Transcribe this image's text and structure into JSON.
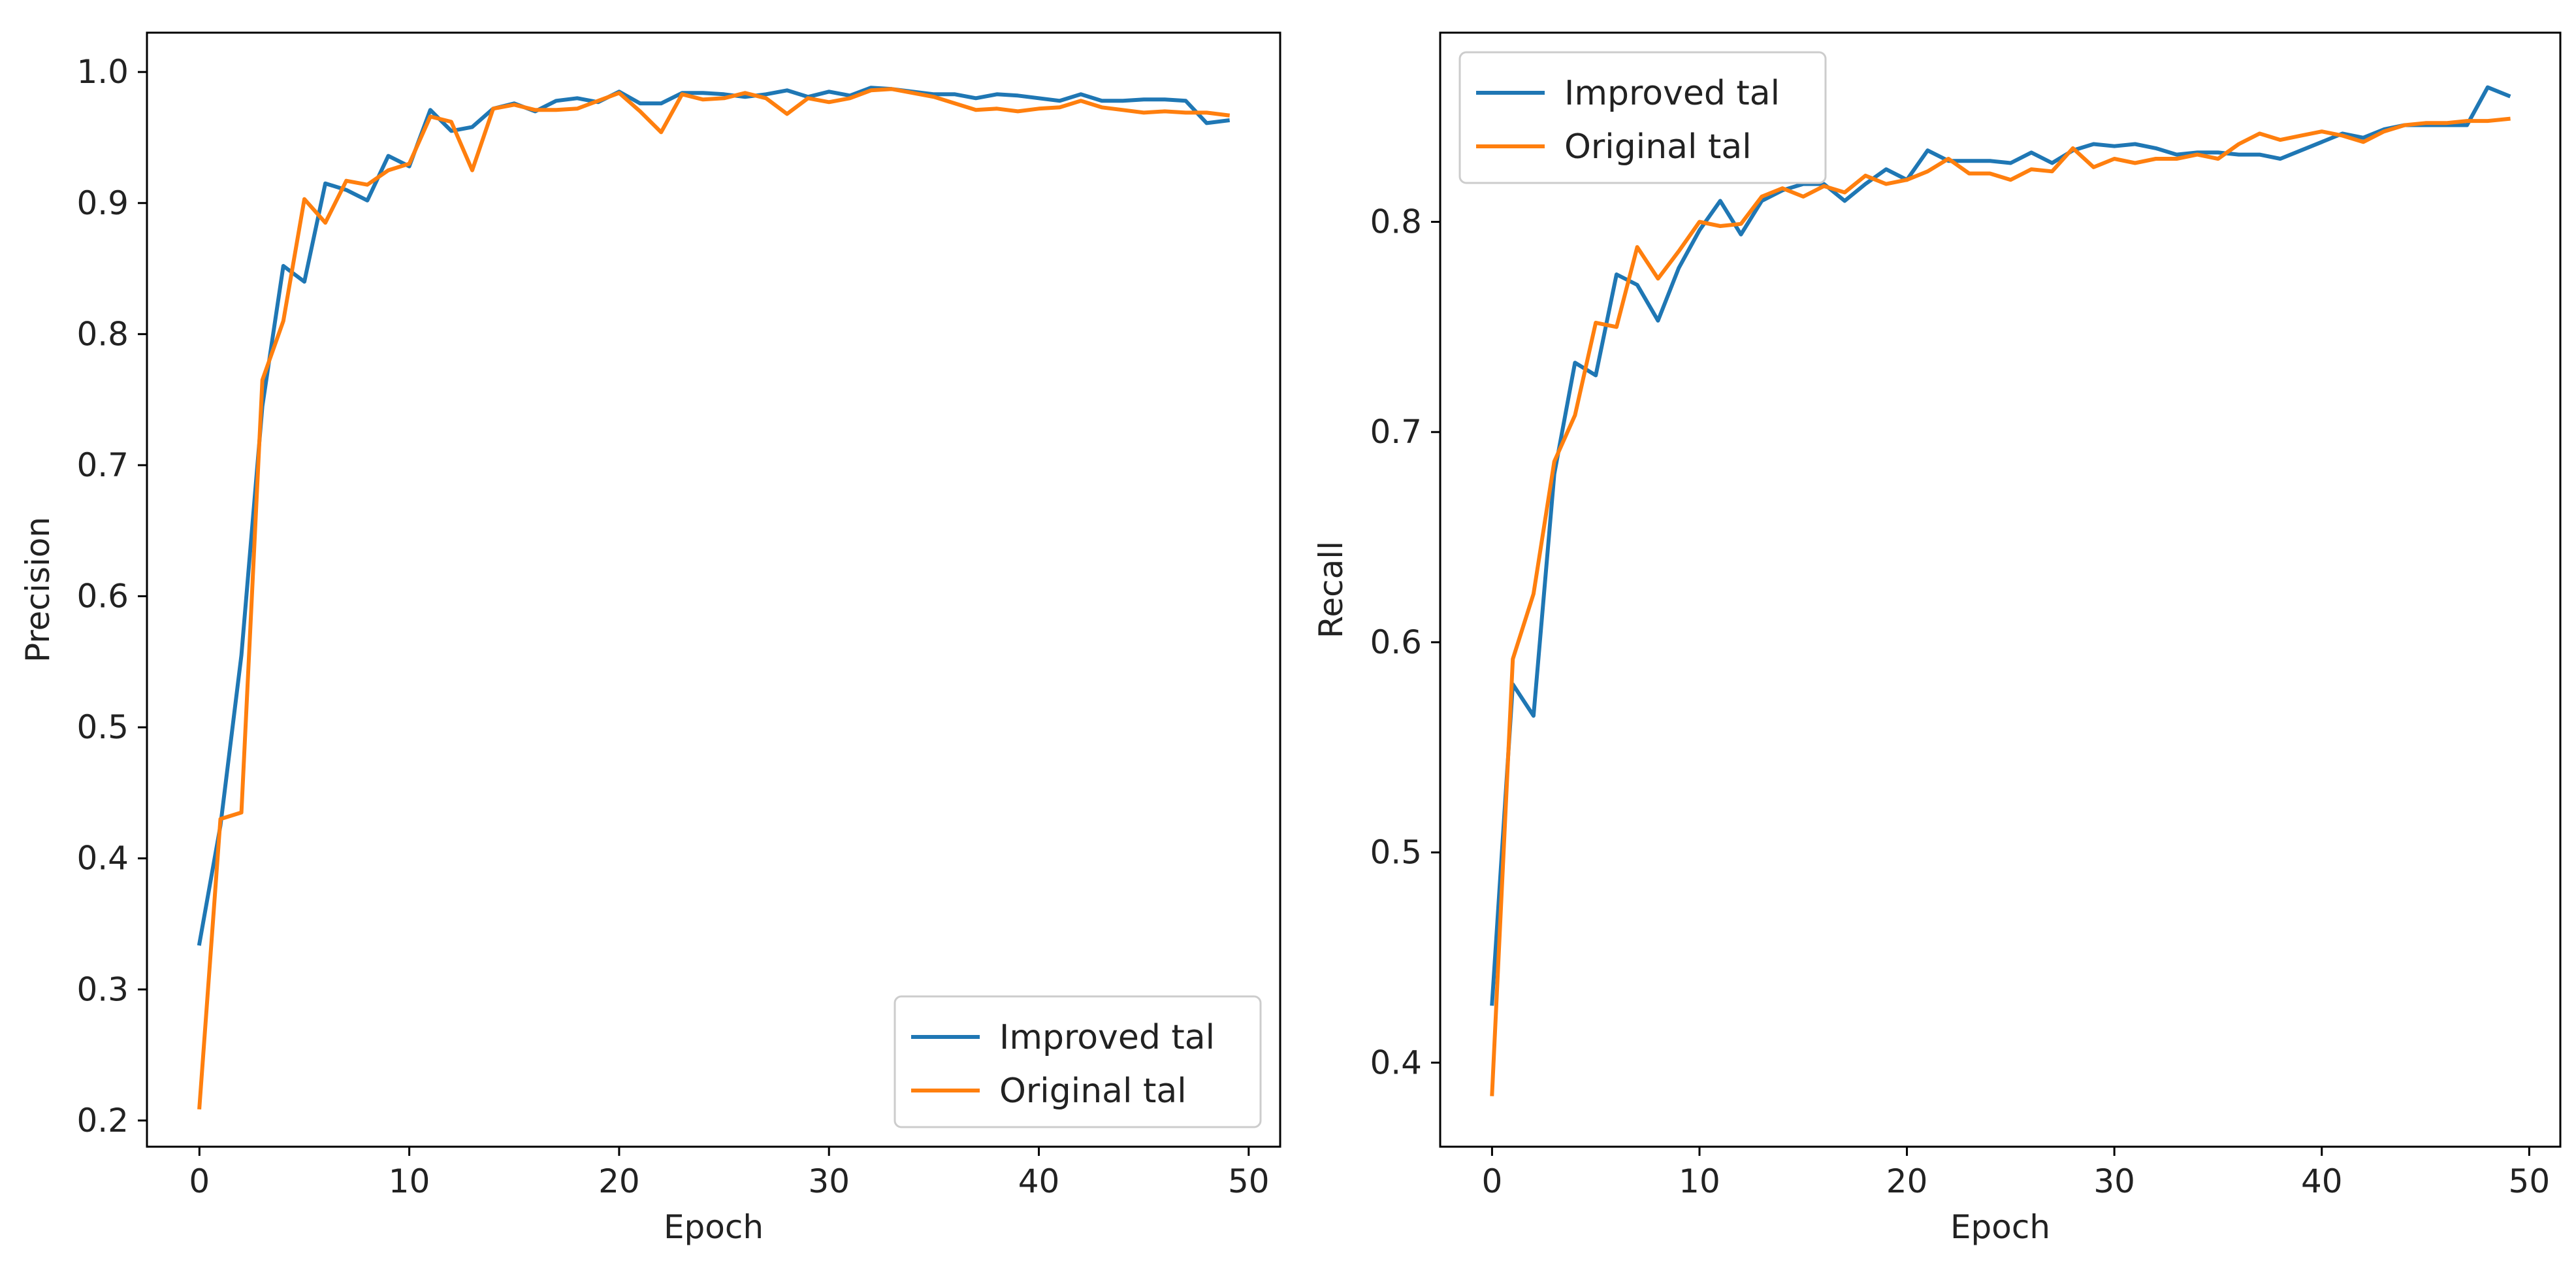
{
  "chart_data": [
    {
      "type": "line",
      "xlabel": "Epoch",
      "ylabel": "Precision",
      "xlim": [
        -2.5,
        51.5
      ],
      "ylim": [
        0.18,
        1.03
      ],
      "xticks": [
        0,
        10,
        20,
        30,
        40,
        50
      ],
      "xtick_labels": [
        "0",
        "10",
        "20",
        "30",
        "40",
        "50"
      ],
      "yticks": [
        0.2,
        0.3,
        0.4,
        0.5,
        0.6,
        0.7,
        0.8,
        0.9,
        1.0
      ],
      "ytick_labels": [
        "0.2",
        "0.3",
        "0.4",
        "0.5",
        "0.6",
        "0.7",
        "0.8",
        "0.9",
        "1.0"
      ],
      "grid": false,
      "legend_position": "lower-right",
      "x": [
        0,
        1,
        2,
        3,
        4,
        5,
        6,
        7,
        8,
        9,
        10,
        11,
        12,
        13,
        14,
        15,
        16,
        17,
        18,
        19,
        20,
        21,
        22,
        23,
        24,
        25,
        26,
        27,
        28,
        29,
        30,
        31,
        32,
        33,
        34,
        35,
        36,
        37,
        38,
        39,
        40,
        41,
        42,
        43,
        44,
        45,
        46,
        47,
        48,
        49
      ],
      "series": [
        {
          "name": "Improved tal",
          "color": "#1f77b4",
          "values": [
            0.335,
            0.425,
            0.555,
            0.745,
            0.852,
            0.84,
            0.915,
            0.91,
            0.902,
            0.936,
            0.928,
            0.971,
            0.955,
            0.958,
            0.972,
            0.976,
            0.97,
            0.978,
            0.98,
            0.977,
            0.985,
            0.976,
            0.976,
            0.984,
            0.984,
            0.983,
            0.981,
            0.983,
            0.986,
            0.981,
            0.985,
            0.982,
            0.988,
            0.987,
            0.985,
            0.983,
            0.983,
            0.98,
            0.983,
            0.982,
            0.98,
            0.978,
            0.983,
            0.978,
            0.978,
            0.979,
            0.979,
            0.978,
            0.961,
            0.963
          ]
        },
        {
          "name": "Original tal",
          "color": "#ff7f0e",
          "values": [
            0.21,
            0.43,
            0.435,
            0.765,
            0.81,
            0.903,
            0.885,
            0.917,
            0.914,
            0.925,
            0.93,
            0.966,
            0.962,
            0.925,
            0.972,
            0.975,
            0.971,
            0.971,
            0.972,
            0.978,
            0.984,
            0.97,
            0.954,
            0.983,
            0.979,
            0.98,
            0.984,
            0.98,
            0.968,
            0.98,
            0.977,
            0.98,
            0.986,
            0.987,
            0.984,
            0.981,
            0.976,
            0.971,
            0.972,
            0.97,
            0.972,
            0.973,
            0.978,
            0.973,
            0.971,
            0.969,
            0.97,
            0.969,
            0.969,
            0.967
          ]
        }
      ]
    },
    {
      "type": "line",
      "xlabel": "Epoch",
      "ylabel": "Recall",
      "xlim": [
        -2.5,
        51.5
      ],
      "ylim": [
        0.36,
        0.89
      ],
      "xticks": [
        0,
        10,
        20,
        30,
        40,
        50
      ],
      "xtick_labels": [
        "0",
        "10",
        "20",
        "30",
        "40",
        "50"
      ],
      "yticks": [
        0.4,
        0.5,
        0.6,
        0.7,
        0.8
      ],
      "ytick_labels": [
        "0.4",
        "0.5",
        "0.6",
        "0.7",
        "0.8"
      ],
      "grid": false,
      "legend_position": "upper-left",
      "x": [
        0,
        1,
        2,
        3,
        4,
        5,
        6,
        7,
        8,
        9,
        10,
        11,
        12,
        13,
        14,
        15,
        16,
        17,
        18,
        19,
        20,
        21,
        22,
        23,
        24,
        25,
        26,
        27,
        28,
        29,
        30,
        31,
        32,
        33,
        34,
        35,
        36,
        37,
        38,
        39,
        40,
        41,
        42,
        43,
        44,
        45,
        46,
        47,
        48,
        49
      ],
      "series": [
        {
          "name": "Improved tal",
          "color": "#1f77b4",
          "values": [
            0.428,
            0.58,
            0.565,
            0.68,
            0.733,
            0.727,
            0.775,
            0.77,
            0.753,
            0.778,
            0.796,
            0.81,
            0.794,
            0.81,
            0.815,
            0.818,
            0.818,
            0.81,
            0.818,
            0.825,
            0.82,
            0.834,
            0.829,
            0.829,
            0.829,
            0.828,
            0.833,
            0.828,
            0.834,
            0.837,
            0.836,
            0.837,
            0.835,
            0.832,
            0.833,
            0.833,
            0.832,
            0.832,
            0.83,
            0.834,
            0.838,
            0.842,
            0.84,
            0.844,
            0.846,
            0.846,
            0.846,
            0.846,
            0.864,
            0.86
          ]
        },
        {
          "name": "Original tal",
          "color": "#ff7f0e",
          "values": [
            0.385,
            0.592,
            0.623,
            0.686,
            0.708,
            0.752,
            0.75,
            0.788,
            0.773,
            0.786,
            0.8,
            0.798,
            0.799,
            0.812,
            0.816,
            0.812,
            0.817,
            0.814,
            0.822,
            0.818,
            0.82,
            0.824,
            0.83,
            0.823,
            0.823,
            0.82,
            0.825,
            0.824,
            0.835,
            0.826,
            0.83,
            0.828,
            0.83,
            0.83,
            0.832,
            0.83,
            0.837,
            0.842,
            0.839,
            0.841,
            0.843,
            0.841,
            0.838,
            0.843,
            0.846,
            0.847,
            0.847,
            0.848,
            0.848,
            0.849
          ]
        }
      ]
    }
  ]
}
